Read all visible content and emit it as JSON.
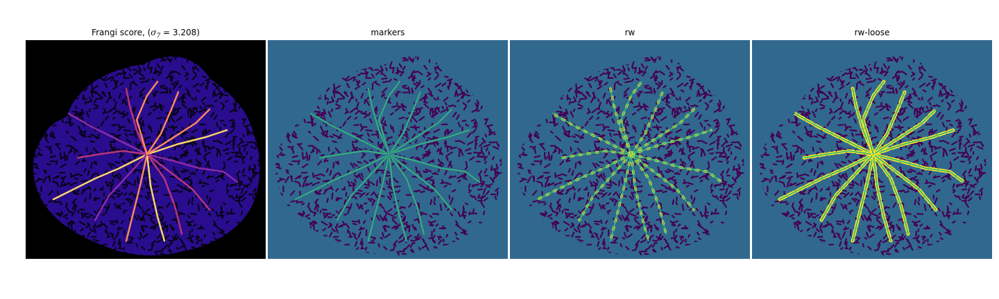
{
  "panels": [
    {
      "id": "frangi",
      "title_prefix": "Frangi score, (",
      "title_sigma": "σ",
      "title_sub": "7",
      "title_suffix": " = 3.208)",
      "background": "#000000",
      "blob_fill": "#2a0d8e",
      "texture": "#07031a",
      "vessel_colors": [
        "#b63679",
        "#fb8861",
        "#fcd56a",
        "#8b2aa6"
      ]
    },
    {
      "id": "markers",
      "title": "markers",
      "background": "#31688e",
      "blob_fill": "#31688e",
      "texture": "#440154",
      "vessel_colors": [
        "#35b779",
        "#31688e"
      ]
    },
    {
      "id": "rw",
      "title": "rw",
      "background": "#31688e",
      "blob_fill": "#31688e",
      "texture": "#440154",
      "vessel_colors": [
        "#35b779",
        "#fde725"
      ]
    },
    {
      "id": "rw-loose",
      "title": "rw-loose",
      "background": "#31688e",
      "blob_fill": "#31688e",
      "texture": "#440154",
      "vessel_colors": [
        "#35b779",
        "#fde725"
      ]
    }
  ]
}
